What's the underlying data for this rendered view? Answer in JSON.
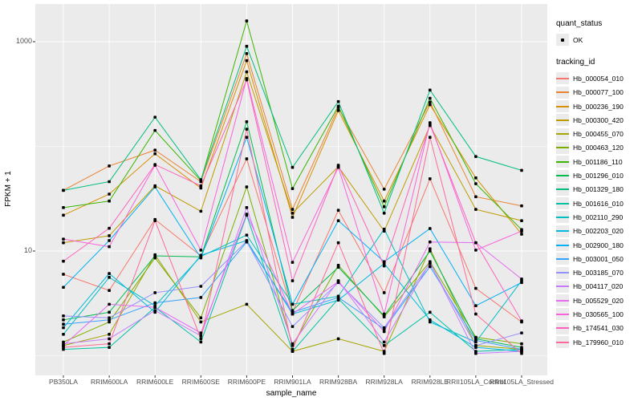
{
  "chart": {
    "y_axis": {
      "label": "FPKM + 1",
      "tick_labels": [
        "1000",
        "10"
      ],
      "tick_values": [
        1000,
        10
      ],
      "minor_values": [
        100,
        1
      ],
      "scale": "log10"
    },
    "x_axis": {
      "label": "sample_name"
    },
    "legend": {
      "quant_status": {
        "title": "quant_status",
        "items": [
          {
            "label": "OK",
            "symbol": "black-point"
          }
        ]
      },
      "tracking_id": {
        "title": "tracking_id"
      }
    }
  },
  "colors": {
    "panel_background": "#EBEBEB",
    "gridline": "#FFFFFF",
    "tick_text": "#4D4D4D",
    "axis_title_text": "#000000",
    "point": "#000000",
    "legend_key_background": "#EBEBEB"
  },
  "chart_data": {
    "type": "line",
    "title": "",
    "xlabel": "sample_name",
    "ylabel": "FPKM + 1",
    "y_scale": "log10",
    "ylim": [
      0.65,
      2300
    ],
    "grid": true,
    "legend_position": "right",
    "point_marker": "black square dot on every vertex",
    "x_categories": [
      "PB350LA",
      "RRIM600LA",
      "RRIM600LE",
      "RRIM600SE",
      "RRIM600PE",
      "RRIM901LA",
      "RRIM928BA",
      "RRIM928LA",
      "RRIM928LE",
      "RRII105LA_Control",
      "RRII105LA_Stressed"
    ],
    "series": [
      {
        "name": "Hb_000054_010",
        "color": "#F8766D",
        "values": [
          6,
          4.2,
          20,
          9,
          76,
          2.6,
          24.5,
          4,
          49,
          4.4,
          2.1
        ]
      },
      {
        "name": "Hb_000077_100",
        "color": "#EA8331",
        "values": [
          38,
          65,
          92,
          46,
          770,
          25,
          235,
          39,
          265,
          33,
          27
        ]
      },
      {
        "name": "Hb_000236_190",
        "color": "#D89000",
        "values": [
          22,
          35,
          85,
          40,
          660,
          21,
          220,
          30,
          250,
          50,
          14.5
        ]
      },
      {
        "name": "Hb_000300_420",
        "color": "#C09B00",
        "values": [
          12,
          14,
          42,
          24,
          515,
          23,
          64,
          15.5,
          158,
          25,
          19.5
        ]
      },
      {
        "name": "Hb_000455_070",
        "color": "#A3A500",
        "values": [
          1.25,
          1.6,
          9.2,
          2.1,
          3.1,
          1.1,
          1.45,
          1.1,
          10.5,
          1.25,
          1.15
        ]
      },
      {
        "name": "Hb_000463_120",
        "color": "#7CAE00",
        "values": [
          1.35,
          2.1,
          8.6,
          2.3,
          41,
          1.25,
          7.3,
          2.35,
          7.9,
          1.5,
          1.3
        ]
      },
      {
        "name": "Hb_001186_110",
        "color": "#39B600",
        "values": [
          26,
          30,
          142,
          47,
          1580,
          39.5,
          242,
          26.5,
          288,
          44,
          16
        ]
      },
      {
        "name": "Hb_001296_010",
        "color": "#00BB4E",
        "values": [
          2.2,
          2.6,
          9,
          8.8,
          172,
          2.7,
          7,
          2.4,
          10,
          1.45,
          1.2
        ]
      },
      {
        "name": "Hb_001329_180",
        "color": "#00BF7D",
        "values": [
          38,
          46,
          190,
          48,
          905,
          63,
          268,
          23,
          345,
          80,
          59
        ]
      },
      {
        "name": "Hb_001616_010",
        "color": "#00C1A3",
        "values": [
          1.15,
          1.2,
          2.9,
          1.35,
          22,
          1.1,
          3.5,
          1.25,
          2.6,
          1.1,
          1.15
        ]
      },
      {
        "name": "Hb_002110_290",
        "color": "#00BFC4",
        "values": [
          1.6,
          5.6,
          3,
          8.9,
          14.2,
          3.1,
          3.7,
          16.2,
          2.1,
          1.35,
          5.2
        ]
      },
      {
        "name": "Hb_002203_020",
        "color": "#00BAE0",
        "values": [
          1.85,
          6.1,
          2.6,
          9.1,
          12.6,
          2.5,
          3.4,
          7.6,
          2.2,
          1.2,
          1.1
        ]
      },
      {
        "name": "Hb_002900_180",
        "color": "#00B0F6",
        "values": [
          4.5,
          12.6,
          41,
          8.6,
          122,
          3.1,
          19.5,
          7.9,
          16.4,
          3,
          5
        ]
      },
      {
        "name": "Hb_003001_050",
        "color": "#35A2FF",
        "values": [
          2,
          2.2,
          3.2,
          3.6,
          12.2,
          2.6,
          3.6,
          1.8,
          7.1,
          1.4,
          1.15
        ]
      },
      {
        "name": "Hb_003185_070",
        "color": "#9590FF",
        "values": [
          2.4,
          2.3,
          4,
          4.6,
          12.4,
          1.9,
          5,
          1.85,
          7.6,
          1.25,
          1.65
        ]
      },
      {
        "name": "Hb_004117_020",
        "color": "#C77CFF",
        "values": [
          1.3,
          1.45,
          2.7,
          1.55,
          26,
          1.3,
          5.2,
          1.35,
          7.8,
          1.05,
          1.1
        ]
      },
      {
        "name": "Hb_005529_020",
        "color": "#E76BF3",
        "values": [
          1.25,
          3.1,
          2.9,
          1.65,
          22.5,
          2.5,
          5.1,
          1.7,
          12.2,
          12,
          5.4
        ]
      },
      {
        "name": "Hb_030565_100",
        "color": "#FA62DB",
        "values": [
          13,
          11,
          66,
          10.2,
          445,
          7.8,
          63,
          2.5,
          168,
          10.2,
          15.5
        ]
      },
      {
        "name": "Hb_174541_030",
        "color": "#FF62BC",
        "values": [
          8,
          16.5,
          67,
          42,
          432,
          5.2,
          66,
          7.2,
          162,
          12,
          2.15
        ]
      },
      {
        "name": "Hb_179960_010",
        "color": "#FF6A98",
        "values": [
          1.2,
          1.3,
          19.5,
          1.45,
          146,
          1.15,
          12,
          1.05,
          122,
          2.5,
          1.05
        ]
      }
    ]
  }
}
